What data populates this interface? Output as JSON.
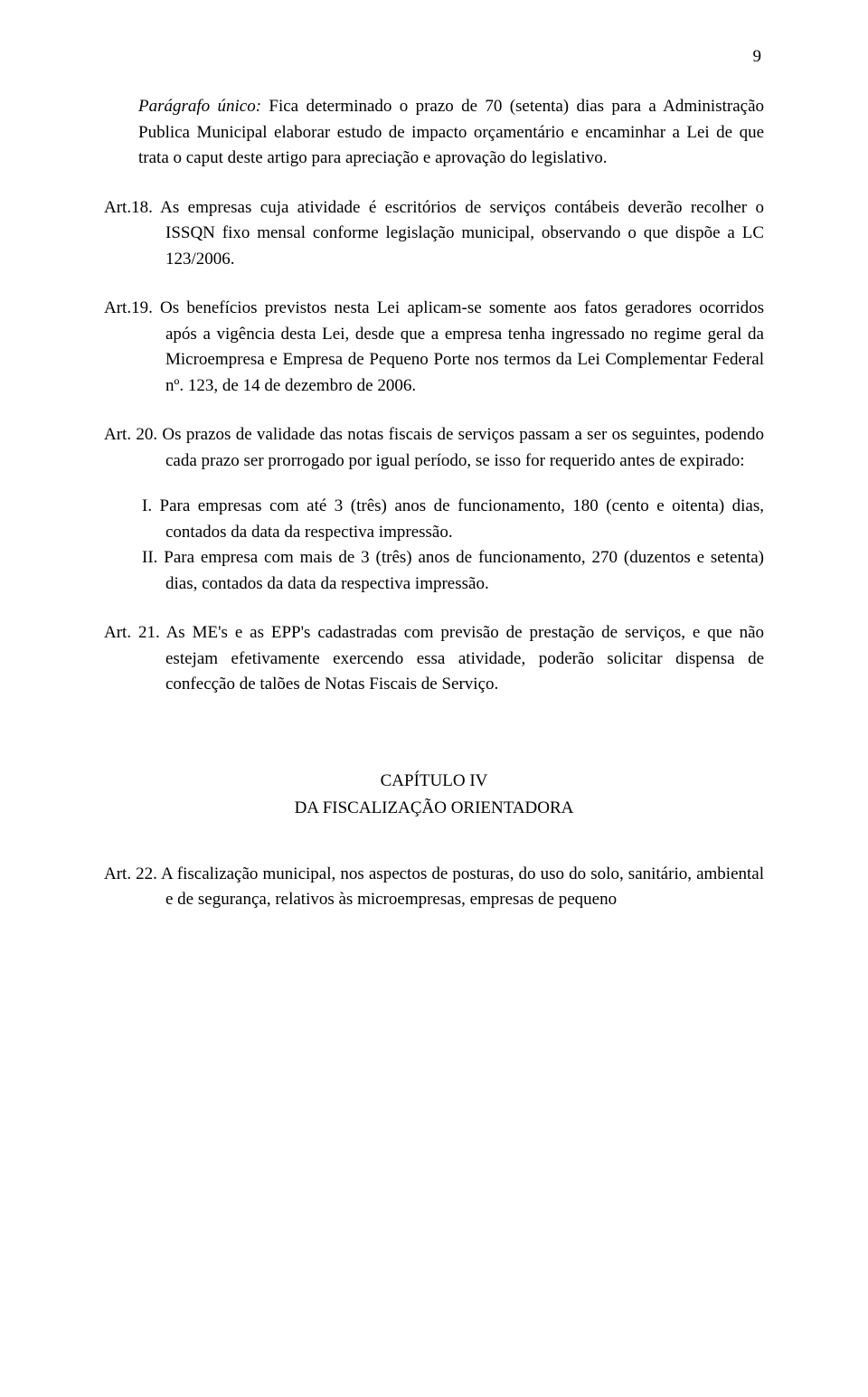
{
  "page_number": "9",
  "font_family": "Times New Roman",
  "font_size_pt": 14,
  "text_color": "#000000",
  "background_color": "#ffffff",
  "paragrafo_unico": {
    "label": "Parágrafo único:",
    "text": " Fica determinado o prazo de 70 (setenta) dias para a Administração Publica Municipal elaborar estudo de impacto orçamentário e encaminhar a Lei de que trata o caput deste artigo para apreciação e aprovação do legislativo."
  },
  "art18": {
    "label": "Art.18.",
    "text": " As empresas cuja atividade é escritórios de serviços contábeis deverão recolher o ISSQN fixo mensal conforme legislação municipal, observando o que dispõe a LC 123/2006."
  },
  "art19": {
    "label": "Art.19.",
    "text": " Os benefícios previstos nesta Lei aplicam-se somente aos fatos geradores ocorridos após a vigência desta Lei, desde que a empresa tenha ingressado no regime geral da Microempresa e Empresa de Pequeno Porte nos termos da Lei Complementar Federal nº. 123, de 14 de dezembro de 2006."
  },
  "art20": {
    "label": "Art. 20.",
    "text": " Os prazos de validade das notas fiscais de serviços passam a ser os seguintes, podendo cada prazo ser prorrogado por igual período, se isso for requerido antes de expirado:"
  },
  "roman": {
    "i": {
      "label": "I.",
      "text": " Para empresas com até 3 (três) anos de funcionamento, 180 (cento e oitenta) dias, contados da data da respectiva impressão."
    },
    "ii": {
      "label": "II.",
      "text": " Para empresa com mais de 3 (três) anos de funcionamento, 270 (duzentos e setenta) dias, contados da data da respectiva impressão."
    }
  },
  "art21": {
    "label": "Art. 21.",
    "text": " As ME's e as EPP's cadastradas com previsão de prestação de serviços, e que não estejam efetivamente exercendo essa atividade, poderão solicitar dispensa de confecção de talões de Notas Fiscais de Serviço."
  },
  "chapter": {
    "title": "CAPÍTULO IV",
    "subtitle": "DA FISCALIZAÇÃO ORIENTADORA"
  },
  "art22": {
    "label": "Art. 22.",
    "text": " A fiscalização municipal, nos aspectos de posturas, do uso do solo, sanitário, ambiental e de segurança, relativos às microempresas, empresas de pequeno"
  }
}
